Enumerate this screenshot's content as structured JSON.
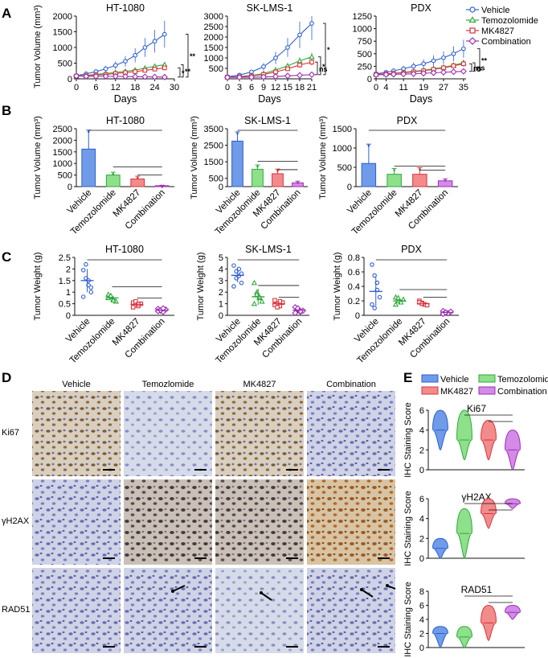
{
  "colors": {
    "vehicle": "#2f5fd0",
    "temozolomide": "#2ea83b",
    "mk4827": "#d8343c",
    "combination": "#9a2fb0",
    "vehicle_fill": "#6f9be8",
    "temozolomide_fill": "#8fe08b",
    "mk4827_fill": "#f28b8b",
    "combination_fill": "#d48ae8"
  },
  "panels": {
    "A": "A",
    "B": "B",
    "C": "C",
    "D": "D",
    "E": "E"
  },
  "groups": [
    "Vehicle",
    "Temozolomide",
    "MK4827",
    "Combination"
  ],
  "groups_ihc": [
    "Vehicle",
    "Temozlomide",
    "MK4827",
    "Combination"
  ],
  "legend_A": [
    "Vehicle",
    "Temozolomide",
    "MK4827",
    "Combination"
  ],
  "legend_E": [
    "Vehicle",
    "Temozolomide",
    "MK4827",
    "Combination"
  ],
  "ihc_rows": [
    "Ki67",
    "γH2AX",
    "RAD51"
  ],
  "ylabel_A": "Tumor Volume (mm³)",
  "ylabel_B": "Tumor Volume (mm³)",
  "ylabel_C": "Tumor Weight (g)",
  "ylabel_E": "IHC Staining Score",
  "xlabel_A": "Days",
  "chart_data": [
    {
      "type": "line",
      "panel": "A",
      "title": "HT-1080",
      "xlabel": "Days",
      "ylabel": "Tumor Volume (mm³)",
      "xlim": [
        0,
        30
      ],
      "ylim": [
        0,
        2000
      ],
      "xticks": [
        0,
        6,
        12,
        18,
        24,
        30
      ],
      "yticks": [
        0,
        500,
        1000,
        1500,
        2000
      ],
      "x": [
        0,
        3,
        6,
        9,
        12,
        15,
        18,
        21,
        24,
        27
      ],
      "series": [
        {
          "name": "Vehicle",
          "values": [
            100,
            160,
            230,
            320,
            430,
            560,
            750,
            1000,
            1200,
            1420
          ]
        },
        {
          "name": "Temozolomide",
          "values": [
            90,
            110,
            140,
            170,
            200,
            240,
            280,
            340,
            400,
            450
          ]
        },
        {
          "name": "MK4827",
          "values": [
            90,
            100,
            120,
            140,
            170,
            200,
            230,
            270,
            310,
            350
          ]
        },
        {
          "name": "Combination",
          "values": [
            90,
            80,
            80,
            80,
            80,
            75,
            70,
            65,
            60,
            55
          ]
        }
      ],
      "significance": [
        "**",
        "**",
        "*"
      ]
    },
    {
      "type": "line",
      "panel": "A",
      "title": "SK-LMS-1",
      "xlabel": "Days",
      "ylabel": "",
      "xlim": [
        0,
        21
      ],
      "ylim": [
        0,
        3000
      ],
      "xticks": [
        0,
        3,
        6,
        9,
        12,
        15,
        18,
        21
      ],
      "yticks": [
        500,
        1000,
        1500,
        2000,
        2500,
        3000
      ],
      "x": [
        0,
        3,
        6,
        9,
        12,
        15,
        18,
        21
      ],
      "series": [
        {
          "name": "Vehicle",
          "values": [
            100,
            180,
            330,
            580,
            1000,
            1500,
            2100,
            2650
          ]
        },
        {
          "name": "Temozolomide",
          "values": [
            80,
            110,
            160,
            250,
            420,
            620,
            860,
            1050
          ]
        },
        {
          "name": "MK4827",
          "values": [
            80,
            100,
            140,
            210,
            330,
            480,
            660,
            800
          ]
        },
        {
          "name": "Combination",
          "values": [
            70,
            75,
            80,
            90,
            110,
            140,
            170,
            200
          ]
        }
      ],
      "significance": [
        "*",
        "*",
        "ns"
      ]
    },
    {
      "type": "line",
      "panel": "A",
      "title": "PDX",
      "xlabel": "Days",
      "ylabel": "",
      "xlim": [
        0,
        36
      ],
      "ylim": [
        0,
        1250
      ],
      "xticks": [
        0,
        4,
        11,
        19,
        27,
        35
      ],
      "yticks": [
        0,
        250,
        500,
        750,
        1000,
        1250
      ],
      "x": [
        0,
        4,
        7,
        11,
        15,
        19,
        23,
        27,
        31,
        35
      ],
      "series": [
        {
          "name": "Vehicle",
          "values": [
            100,
            130,
            160,
            200,
            250,
            300,
            360,
            420,
            500,
            600
          ]
        },
        {
          "name": "Temozolomide",
          "values": [
            90,
            100,
            110,
            130,
            150,
            170,
            200,
            230,
            270,
            320
          ]
        },
        {
          "name": "MK4827",
          "values": [
            90,
            100,
            110,
            120,
            140,
            160,
            190,
            220,
            260,
            300
          ]
        },
        {
          "name": "Combination",
          "values": [
            80,
            85,
            90,
            95,
            100,
            110,
            120,
            130,
            140,
            150
          ]
        }
      ],
      "significance": [
        "**",
        "ns",
        "ns"
      ]
    },
    {
      "type": "bar",
      "panel": "B",
      "title": "HT-1080",
      "ylabel": "Tumor Volume (mm³)",
      "ylim": [
        0,
        2500
      ],
      "yticks": [
        0,
        500,
        1000,
        1500,
        2000,
        2500
      ],
      "categories": [
        "Vehicle",
        "Temozolomide",
        "MK4827",
        "Combination"
      ],
      "values": [
        1620,
        500,
        330,
        40
      ],
      "errors": [
        820,
        120,
        120,
        20
      ],
      "significance": [
        "***",
        "***",
        "**"
      ]
    },
    {
      "type": "bar",
      "panel": "B",
      "title": "SK-LMS-1",
      "ylabel": "Tumor Volume (mm³)",
      "ylim": [
        0,
        3500
      ],
      "yticks": [
        0,
        500,
        1500,
        2500,
        3500
      ],
      "categories": [
        "Vehicle",
        "Temozolomide",
        "MK4827",
        "Combination"
      ],
      "values": [
        2750,
        1050,
        780,
        230
      ],
      "errors": [
        560,
        260,
        280,
        100
      ],
      "significance": [
        "***",
        "***",
        "***"
      ]
    },
    {
      "type": "bar",
      "panel": "B",
      "title": "PDX",
      "ylabel": "Tumor Volume (mm³)",
      "ylim": [
        0,
        1500
      ],
      "yticks": [
        0,
        500,
        1000,
        1500
      ],
      "categories": [
        "Vehicle",
        "Temozolomide",
        "MK4827",
        "Combination"
      ],
      "values": [
        600,
        320,
        320,
        150
      ],
      "errors": [
        500,
        150,
        170,
        50
      ],
      "significance": [
        "*",
        "*",
        "*"
      ]
    },
    {
      "type": "scatter",
      "panel": "C",
      "title": "HT-1080",
      "ylabel": "Tumor Weight (g)",
      "ylim": [
        0,
        2.5
      ],
      "yticks": [
        0,
        0.5,
        1.0,
        1.5,
        2.0,
        2.5
      ],
      "categories": [
        "Vehicle",
        "Temozolomide",
        "MK4827",
        "Combination"
      ],
      "points": [
        [
          1.95,
          1.6,
          1.3,
          1.0,
          0.8,
          2.2,
          1.5,
          1.2
        ],
        [
          0.9,
          0.8,
          0.7,
          0.6,
          0.75,
          0.85,
          0.65
        ],
        [
          0.55,
          0.45,
          0.4,
          0.5,
          0.35,
          0.6,
          0.48
        ],
        [
          0.28,
          0.2,
          0.15,
          0.25,
          0.18,
          0.22,
          0.3
        ]
      ],
      "means": [
        1.5,
        0.75,
        0.47,
        0.22
      ],
      "sd": [
        0.5,
        0.12,
        0.09,
        0.05
      ],
      "significance": [
        "***",
        "***",
        "***"
      ]
    },
    {
      "type": "scatter",
      "panel": "C",
      "title": "SK-LMS-1",
      "ylabel": "Tumor Weight (g)",
      "ylim": [
        0,
        5.0
      ],
      "yticks": [
        0,
        1.0,
        2.0,
        3.0,
        4.0,
        5.0
      ],
      "categories": [
        "Vehicle",
        "Temozolomide",
        "MK4827",
        "Combination"
      ],
      "points": [
        [
          4.3,
          3.8,
          3.4,
          2.8,
          2.5,
          3.2,
          4.0,
          3.6
        ],
        [
          2.8,
          2.0,
          1.5,
          1.2,
          1.0,
          1.8,
          1.6
        ],
        [
          1.3,
          1.0,
          0.8,
          1.1,
          0.9,
          0.7,
          1.2
        ],
        [
          0.7,
          0.5,
          0.3,
          0.4,
          0.2,
          0.6,
          0.35
        ]
      ],
      "means": [
        3.45,
        1.6,
        1.0,
        0.45
      ],
      "sd": [
        0.6,
        0.7,
        0.2,
        0.2
      ],
      "significance": [
        "***",
        "***",
        "***"
      ]
    },
    {
      "type": "scatter",
      "panel": "C",
      "title": "PDX",
      "ylabel": "Tumor Weight (g)",
      "ylim": [
        0,
        0.8
      ],
      "yticks": [
        0,
        0.2,
        0.4,
        0.6,
        0.8
      ],
      "categories": [
        "Vehicle",
        "Temozolomide",
        "MK4827",
        "Combination"
      ],
      "points": [
        [
          0.7,
          0.55,
          0.35,
          0.25,
          0.15,
          0.1,
          0.45
        ],
        [
          0.25,
          0.2,
          0.18,
          0.22,
          0.15,
          0.24
        ],
        [
          0.2,
          0.17,
          0.15,
          0.14,
          0.18,
          0.16
        ],
        [
          0.06,
          0.04,
          0.03,
          0.05,
          0.02,
          0.04
        ]
      ],
      "means": [
        0.33,
        0.2,
        0.16,
        0.04
      ],
      "sd": [
        0.2,
        0.04,
        0.03,
        0.015
      ],
      "significance": [
        "*",
        "***",
        "***"
      ]
    },
    {
      "type": "violin",
      "panel": "E",
      "title": "Ki67",
      "ylabel": "IHC Staining Score",
      "ylim": [
        0,
        6
      ],
      "yticks": [
        0,
        2,
        4,
        6
      ],
      "categories": [
        "Vehicle",
        "Temozolomide",
        "MK4827",
        "Combination"
      ],
      "ranges": [
        [
          2,
          6
        ],
        [
          1,
          6
        ],
        [
          1,
          5
        ],
        [
          0,
          4
        ]
      ],
      "medians": [
        4,
        3,
        3,
        2
      ],
      "significance": [
        "•",
        "•"
      ]
    },
    {
      "type": "violin",
      "panel": "E",
      "title": "γH2AX",
      "ylabel": "IHC Staining Score",
      "ylim": [
        0,
        6
      ],
      "yticks": [
        0,
        2,
        4,
        6
      ],
      "categories": [
        "Vehicle",
        "Temozolomide",
        "MK4827",
        "Combination"
      ],
      "ranges": [
        [
          0,
          2
        ],
        [
          0,
          5
        ],
        [
          3,
          6
        ],
        [
          5,
          6
        ]
      ],
      "medians": [
        1,
        2.5,
        4.5,
        5.5
      ],
      "significance": [
        "•",
        "•"
      ]
    },
    {
      "type": "violin",
      "panel": "E",
      "title": "RAD51",
      "ylabel": "IHC Staining Score",
      "ylim": [
        0,
        8
      ],
      "yticks": [
        0,
        2,
        4,
        6,
        8
      ],
      "categories": [
        "Vehicle",
        "Temozolomide",
        "MK4827",
        "Combination"
      ],
      "ranges": [
        [
          0,
          3
        ],
        [
          0,
          3
        ],
        [
          1,
          6
        ],
        [
          4,
          6
        ]
      ],
      "medians": [
        2,
        1.5,
        3.5,
        5
      ],
      "significance": [
        "•",
        "•"
      ]
    }
  ]
}
